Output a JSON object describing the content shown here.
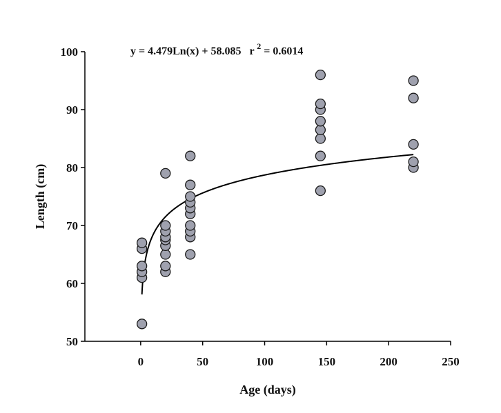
{
  "chart_data": {
    "type": "scatter",
    "xlabel": "Age (days)",
    "ylabel": "Length (cm)",
    "xlim": [
      -45,
      250
    ],
    "ylim": [
      50,
      100
    ],
    "xticks": [
      0,
      50,
      100,
      150,
      200,
      250
    ],
    "yticks": [
      50,
      60,
      70,
      80,
      90,
      100
    ],
    "grid": false,
    "marker_fill": "#9fa1ae",
    "marker_stroke": "#1a1a1a",
    "line_color": "#000000",
    "annotation": {
      "equation": "y = 4.479Ln(x) + 58.085",
      "r_label": "r",
      "r_exponent": "2",
      "r_value": " = 0.6014"
    },
    "trendline": {
      "type": "log",
      "a": 4.479,
      "b": 58.085,
      "x_range": [
        1,
        220
      ]
    },
    "points": [
      {
        "x": 1,
        "y": 53
      },
      {
        "x": 1,
        "y": 61
      },
      {
        "x": 1,
        "y": 62
      },
      {
        "x": 1,
        "y": 63
      },
      {
        "x": 1,
        "y": 66
      },
      {
        "x": 1,
        "y": 67
      },
      {
        "x": 20,
        "y": 62
      },
      {
        "x": 20,
        "y": 63
      },
      {
        "x": 20,
        "y": 65
      },
      {
        "x": 20,
        "y": 66.5
      },
      {
        "x": 20,
        "y": 67.5
      },
      {
        "x": 20,
        "y": 68
      },
      {
        "x": 20,
        "y": 69
      },
      {
        "x": 20,
        "y": 70
      },
      {
        "x": 20,
        "y": 79
      },
      {
        "x": 40,
        "y": 65
      },
      {
        "x": 40,
        "y": 68
      },
      {
        "x": 40,
        "y": 69
      },
      {
        "x": 40,
        "y": 70
      },
      {
        "x": 40,
        "y": 72
      },
      {
        "x": 40,
        "y": 73
      },
      {
        "x": 40,
        "y": 74
      },
      {
        "x": 40,
        "y": 75
      },
      {
        "x": 40,
        "y": 77
      },
      {
        "x": 40,
        "y": 82
      },
      {
        "x": 145,
        "y": 76
      },
      {
        "x": 145,
        "y": 82
      },
      {
        "x": 145,
        "y": 85
      },
      {
        "x": 145,
        "y": 86.5
      },
      {
        "x": 145,
        "y": 88
      },
      {
        "x": 145,
        "y": 90
      },
      {
        "x": 145,
        "y": 91
      },
      {
        "x": 145,
        "y": 96
      },
      {
        "x": 220,
        "y": 80
      },
      {
        "x": 220,
        "y": 81
      },
      {
        "x": 220,
        "y": 84
      },
      {
        "x": 220,
        "y": 92
      },
      {
        "x": 220,
        "y": 95
      }
    ]
  }
}
